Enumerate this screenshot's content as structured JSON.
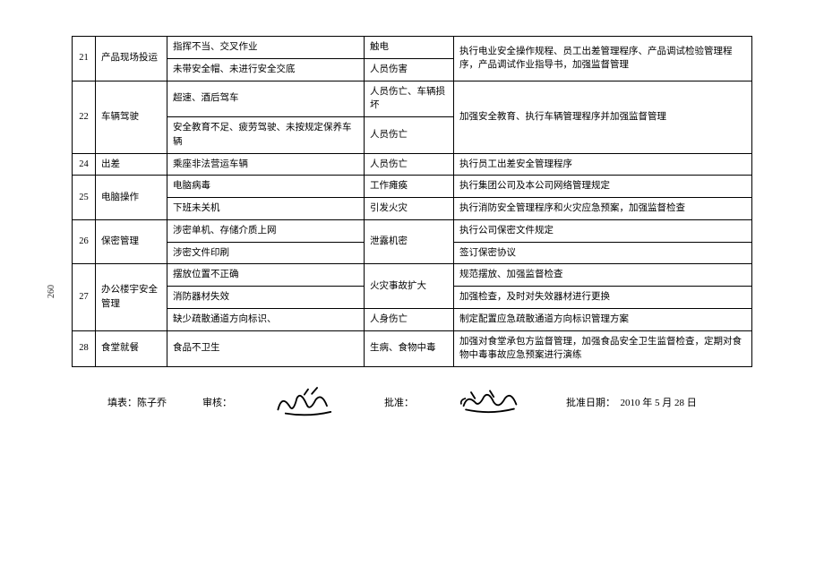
{
  "page_number": "260",
  "table": {
    "rows": [
      {
        "num": "21",
        "cat": "产品现场投运",
        "sub": [
          {
            "cause": "指挥不当、交叉作业",
            "result": "触电",
            "action": "执行电业安全操作规程、员工出差管理程序、产品调试检验管理程序，产品调试作业指导书，加强监督管理",
            "action_rowspan": 2
          },
          {
            "cause": "未带安全帽、未进行安全交底",
            "result": "人员伤害"
          }
        ]
      },
      {
        "num": "22",
        "cat": "车辆驾驶",
        "sub": [
          {
            "cause": "超速、酒后驾车",
            "result": "人员伤亡、车辆损坏",
            "action": "加强安全教育、执行车辆管理程序并加强监督管理",
            "action_rowspan": 2
          },
          {
            "cause": "安全教育不足、疲劳驾驶、未按规定保养车辆",
            "result": "人员伤亡"
          }
        ]
      },
      {
        "num": "24",
        "cat": "出差",
        "sub": [
          {
            "cause": "乘座非法营运车辆",
            "result": "人员伤亡",
            "action": "执行员工出差安全管理程序"
          }
        ]
      },
      {
        "num": "25",
        "cat": "电脑操作",
        "sub": [
          {
            "cause": "电脑病毒",
            "result": "工作瘫痪",
            "action": "执行集团公司及本公司网络管理规定"
          },
          {
            "cause": "下班未关机",
            "result": "引发火灾",
            "action": "执行消防安全管理程序和火灾应急预案，加强监督检查"
          }
        ]
      },
      {
        "num": "26",
        "cat": "保密管理",
        "sub": [
          {
            "cause": "涉密单机、存储介质上网",
            "result": "泄露机密",
            "result_rowspan": 2,
            "action": "执行公司保密文件规定"
          },
          {
            "cause": "涉密文件印刷",
            "action": "签订保密协议"
          }
        ]
      },
      {
        "num": "27",
        "cat": "办公楼宇安全管理",
        "sub": [
          {
            "cause": "摆放位置不正确",
            "result": "火灾事故扩大",
            "result_rowspan": 2,
            "action": "规范摆放、加强监督检查"
          },
          {
            "cause": "消防器材失效",
            "action": "加强检查，及时对失效器材进行更换"
          },
          {
            "cause": "缺少疏散通道方向标识、",
            "result": "人身伤亡",
            "action": "制定配置应急疏散通道方向标识管理方案"
          }
        ]
      },
      {
        "num": "28",
        "cat": "食堂就餐",
        "sub": [
          {
            "cause": "食品不卫生",
            "result": "生病、食物中毒",
            "action": "加强对食堂承包方监督管理，加强食品安全卫生监督检查，定期对食物中毒事故应急预案进行演练"
          }
        ]
      }
    ]
  },
  "footer": {
    "filler_label": "填表：",
    "filler_name": "陈子乔",
    "review_label": "审核：",
    "approve_label": "批准：",
    "date_label": "批准日期：",
    "date_value": "2010  年 5 月 28 日"
  },
  "style": {
    "border_color": "#000000",
    "bg": "#ffffff",
    "font_size_pt": 10.5,
    "sig_stroke": "#000000"
  }
}
